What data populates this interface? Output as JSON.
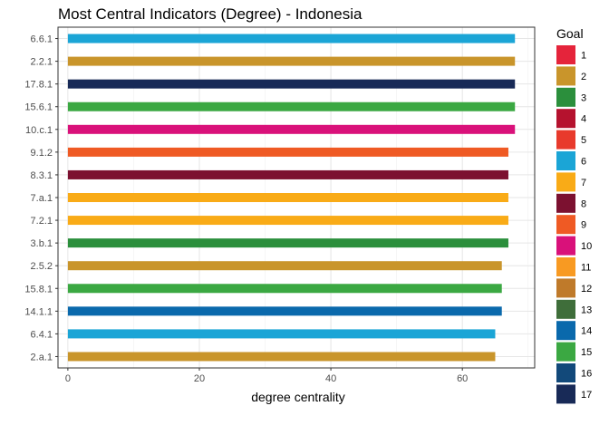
{
  "chart_data": {
    "type": "bar",
    "orientation": "horizontal",
    "title": "Most Central Indicators (Degree) - Indonesia",
    "xlabel": "degree centrality",
    "ylabel": "",
    "xlim": [
      -1.5,
      71
    ],
    "x_ticks": [
      0,
      20,
      40,
      60
    ],
    "grid": true,
    "legend_position": "right",
    "categories": [
      "6.6.1",
      "2.2.1",
      "17.8.1",
      "15.6.1",
      "10.c.1",
      "9.1.2",
      "8.3.1",
      "7.a.1",
      "7.2.1",
      "3.b.1",
      "2.5.2",
      "15.8.1",
      "14.1.1",
      "6.4.1",
      "2.a.1"
    ],
    "values": [
      68,
      68,
      68,
      68,
      68,
      67,
      67,
      67,
      67,
      67,
      66,
      66,
      66,
      65,
      65
    ],
    "goals": [
      6,
      2,
      17,
      15,
      10,
      9,
      8,
      7,
      7,
      3,
      2,
      15,
      14,
      6,
      2
    ],
    "legend": {
      "title": "Goal",
      "entries": [
        {
          "label": "1",
          "color": "#E5243B"
        },
        {
          "label": "2",
          "color": "#C9952B"
        },
        {
          "label": "3",
          "color": "#2B8F3C"
        },
        {
          "label": "4",
          "color": "#B5122E"
        },
        {
          "label": "5",
          "color": "#E83A2C"
        },
        {
          "label": "6",
          "color": "#1BA5D6"
        },
        {
          "label": "7",
          "color": "#F9AB17"
        },
        {
          "label": "8",
          "color": "#7C1130"
        },
        {
          "label": "9",
          "color": "#EF5A24"
        },
        {
          "label": "10",
          "color": "#D9117A"
        },
        {
          "label": "11",
          "color": "#F89A22"
        },
        {
          "label": "12",
          "color": "#BF7A2A"
        },
        {
          "label": "13",
          "color": "#3F6E3A"
        },
        {
          "label": "14",
          "color": "#0A69AC"
        },
        {
          "label": "15",
          "color": "#3BA842"
        },
        {
          "label": "16",
          "color": "#12497A"
        },
        {
          "label": "17",
          "color": "#182A57"
        }
      ]
    }
  }
}
